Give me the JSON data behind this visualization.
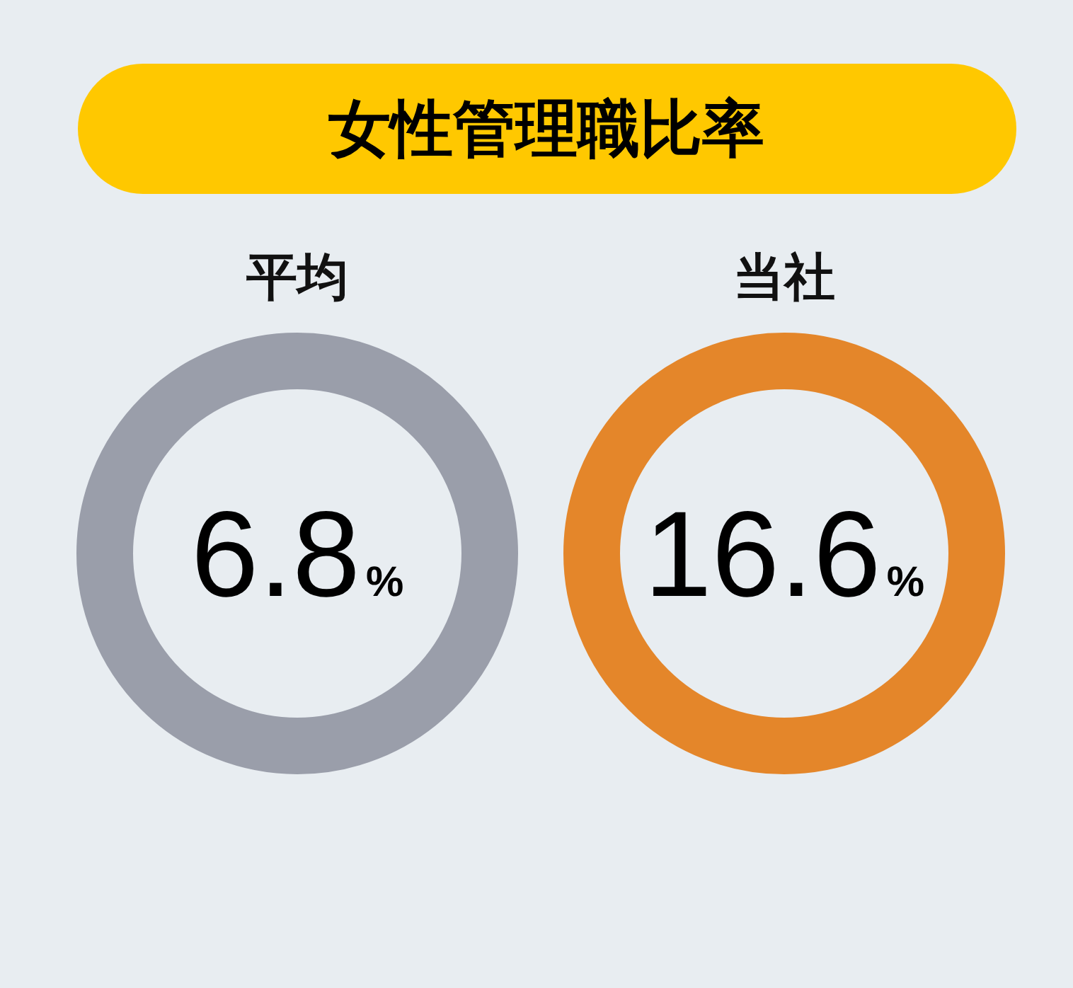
{
  "chart_data": {
    "type": "other",
    "title": "女性管理職比率",
    "categories": [
      "平均",
      "当社"
    ],
    "values": [
      6.8,
      16.6
    ],
    "value_labels": [
      "6.8%",
      "16.6%"
    ],
    "colors": [
      "#9a9eaa",
      "#e4862a"
    ]
  }
}
